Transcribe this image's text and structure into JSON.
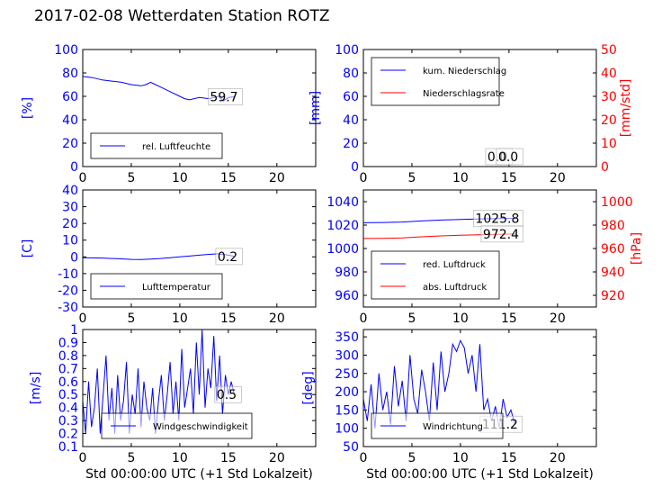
{
  "title": "2017-02-08 Wetterdaten Station ROTZ",
  "chart_data": [
    {
      "id": "humidity",
      "type": "line",
      "xlim": [
        0,
        24
      ],
      "xticks": [
        0,
        5,
        10,
        15,
        20
      ],
      "ylim": [
        0,
        100
      ],
      "yticks": [
        0,
        20,
        40,
        60,
        80,
        100
      ],
      "ylabel": "[%]",
      "xlabel": "",
      "legend": "lower-left",
      "series": [
        {
          "name": "rel. Luftfeuchte",
          "color": "#0000ff",
          "x": [
            0,
            1,
            2,
            3,
            4,
            5,
            6,
            6.5,
            7,
            7.5,
            8,
            9,
            10,
            10.5,
            11,
            12,
            13,
            14,
            14.5,
            15,
            15.7
          ],
          "y": [
            77,
            76,
            74,
            73,
            72,
            70,
            69,
            70,
            72,
            70,
            68,
            64,
            60,
            58,
            57,
            59,
            58,
            60,
            56,
            59,
            59.7
          ]
        }
      ],
      "annotations": [
        "59.7"
      ]
    },
    {
      "id": "precipitation",
      "type": "line",
      "xlim": [
        0,
        24
      ],
      "xticks": [
        0,
        5,
        10,
        15,
        20
      ],
      "ylim": [
        0,
        100
      ],
      "yticks": [
        0,
        20,
        40,
        60,
        80,
        100
      ],
      "ylabel": "[mm]",
      "y2lim": [
        0,
        50
      ],
      "y2ticks": [
        0,
        10,
        20,
        30,
        40,
        50
      ],
      "y2label": "[mm/std]",
      "legend": "upper-left",
      "series": [
        {
          "name": "kum. Niederschlag",
          "color": "#0000ff",
          "axis": "left",
          "x": [
            0,
            15.7
          ],
          "y": [
            0,
            0
          ]
        },
        {
          "name": "Niederschlagsrate",
          "color": "#ff0000",
          "axis": "right",
          "x": [
            0,
            15.7
          ],
          "y": [
            0,
            0
          ]
        }
      ],
      "annotations": [
        "0.0",
        "0.0"
      ]
    },
    {
      "id": "temperature",
      "type": "line",
      "xlim": [
        0,
        24
      ],
      "xticks": [
        0,
        5,
        10,
        15,
        20
      ],
      "ylim": [
        -30,
        40
      ],
      "yticks": [
        -30,
        -20,
        -10,
        0,
        10,
        20,
        30,
        40
      ],
      "ylabel": "[C]",
      "legend": "lower-left",
      "series": [
        {
          "name": "Lufttemperatur",
          "color": "#0000ff",
          "x": [
            0,
            2,
            4,
            5,
            6,
            7,
            8,
            9,
            10,
            11,
            12,
            13,
            14,
            15,
            15.7
          ],
          "y": [
            -0.5,
            -0.7,
            -1.2,
            -1.5,
            -1.6,
            -1.3,
            -1.0,
            -0.5,
            0.0,
            0.5,
            1.0,
            1.5,
            1.8,
            1.0,
            0.2
          ]
        }
      ],
      "annotations": [
        "0.2"
      ]
    },
    {
      "id": "pressure",
      "type": "line",
      "xlim": [
        0,
        24
      ],
      "xticks": [
        0,
        5,
        10,
        15,
        20
      ],
      "ylim": [
        950,
        1050
      ],
      "yticks": [
        960,
        980,
        1000,
        1020,
        1040
      ],
      "ylabel": "",
      "y2lim": [
        910,
        1010
      ],
      "y2ticks": [
        920,
        940,
        960,
        980,
        1000
      ],
      "y2label": "[hPa]",
      "legend": "lower-left",
      "series": [
        {
          "name": "red. Luftdruck",
          "color": "#0000ff",
          "axis": "left",
          "x": [
            0,
            2,
            4,
            6,
            8,
            10,
            12,
            14,
            15.7
          ],
          "y": [
            1022.0,
            1022.2,
            1022.6,
            1023.5,
            1024.3,
            1024.8,
            1025.3,
            1025.6,
            1025.8
          ]
        },
        {
          "name": "abs. Luftdruck",
          "color": "#ff0000",
          "axis": "right",
          "x": [
            0,
            2,
            4,
            6,
            8,
            10,
            12,
            14,
            15.7
          ],
          "y": [
            968.5,
            968.7,
            969.0,
            970.0,
            970.8,
            971.3,
            971.8,
            972.1,
            972.4
          ]
        }
      ],
      "annotations": [
        "1025.8",
        "972.4"
      ]
    },
    {
      "id": "windspeed",
      "type": "line",
      "xlim": [
        0,
        24
      ],
      "xticks": [
        0,
        5,
        10,
        15,
        20
      ],
      "ylim": [
        0.1,
        1.0
      ],
      "yticks": [
        0.1,
        0.2,
        0.3,
        0.4,
        0.5,
        0.6,
        0.7,
        0.8,
        0.9,
        1.0
      ],
      "ylabel": "[m/s]",
      "xlabel": "Std 00:00:00 UTC (+1 Std Lokalzeit)",
      "legend": "lower-right",
      "series": [
        {
          "name": "Windgeschwindigkeit",
          "color": "#0000ff",
          "x": [
            0,
            0.3,
            0.6,
            0.9,
            1.2,
            1.5,
            1.8,
            2.1,
            2.4,
            2.7,
            3.0,
            3.3,
            3.6,
            3.9,
            4.2,
            4.5,
            4.8,
            5.1,
            5.4,
            5.7,
            6.0,
            6.3,
            6.6,
            6.9,
            7.2,
            7.5,
            7.8,
            8.1,
            8.4,
            8.7,
            9.0,
            9.3,
            9.6,
            9.9,
            10.2,
            10.5,
            10.8,
            11.1,
            11.4,
            11.7,
            12.0,
            12.3,
            12.6,
            12.9,
            13.2,
            13.5,
            13.8,
            14.1,
            14.4,
            14.7,
            15.0,
            15.3,
            15.6
          ],
          "y": [
            0.45,
            0.2,
            0.6,
            0.25,
            0.4,
            0.7,
            0.2,
            0.5,
            0.8,
            0.3,
            0.55,
            0.2,
            0.65,
            0.3,
            0.45,
            0.75,
            0.2,
            0.5,
            0.35,
            0.7,
            0.25,
            0.6,
            0.4,
            0.3,
            0.55,
            0.2,
            0.45,
            0.65,
            0.3,
            0.5,
            0.75,
            0.35,
            0.6,
            0.3,
            0.85,
            0.4,
            0.55,
            0.7,
            0.35,
            0.9,
            0.5,
            1.0,
            0.4,
            0.7,
            0.55,
            0.95,
            0.45,
            0.8,
            0.35,
            0.65,
            0.5,
            0.6,
            0.5
          ]
        }
      ],
      "annotations": [
        "0.5"
      ]
    },
    {
      "id": "winddirection",
      "type": "line",
      "xlim": [
        0,
        24
      ],
      "xticks": [
        0,
        5,
        10,
        15,
        20
      ],
      "ylim": [
        50,
        370
      ],
      "yticks": [
        50,
        100,
        150,
        200,
        250,
        300,
        350
      ],
      "ylabel": "[deg]",
      "xlabel": "Std 00:00:00 UTC (+1 Std Lokalzeit)",
      "legend": "lower-left",
      "series": [
        {
          "name": "Windrichtung",
          "color": "#0000ff",
          "x": [
            0,
            0.4,
            0.8,
            1.2,
            1.6,
            2.0,
            2.4,
            2.8,
            3.2,
            3.6,
            4.0,
            4.4,
            4.8,
            5.2,
            5.6,
            6.0,
            6.4,
            6.8,
            7.2,
            7.6,
            8.0,
            8.4,
            8.8,
            9.2,
            9.6,
            10.0,
            10.4,
            10.8,
            11.2,
            11.6,
            12.0,
            12.4,
            12.8,
            13.2,
            13.6,
            14.0,
            14.4,
            14.8,
            15.2,
            15.6
          ],
          "y": [
            180,
            120,
            220,
            100,
            250,
            150,
            200,
            110,
            270,
            160,
            230,
            120,
            300,
            180,
            140,
            260,
            200,
            120,
            280,
            150,
            310,
            200,
            250,
            330,
            310,
            340,
            320,
            250,
            300,
            200,
            330,
            150,
            180,
            120,
            160,
            100,
            180,
            130,
            150,
            111.2
          ]
        }
      ],
      "annotations": [
        "111.2"
      ]
    }
  ]
}
